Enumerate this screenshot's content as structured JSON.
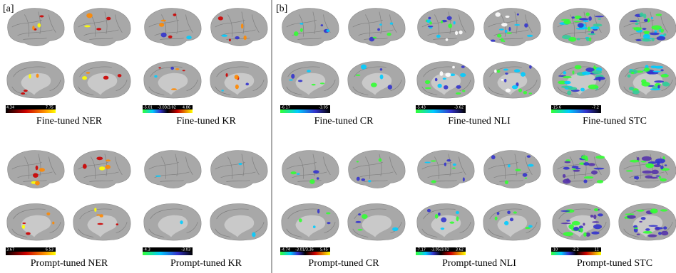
{
  "labels": {
    "a": "[a]",
    "b": "[b]"
  },
  "panels": [
    {
      "title": "Fine-tuned NER",
      "colorbar": [
        "4.34",
        "7.75"
      ]
    },
    {
      "title": "Fine-tuned KR",
      "colorbar": [
        "-5.01",
        "-3.03/3.02",
        "4.86"
      ]
    },
    {
      "title": "Prompt-tuned NER",
      "colorbar": [
        "3.67",
        "6.53"
      ]
    },
    {
      "title": "Prompt-tuned KR",
      "colorbar": [
        "-4.3",
        "-3.03"
      ]
    },
    {
      "title": "Fine-tuned CR",
      "colorbar": [
        "-6.17",
        "-3.05"
      ]
    },
    {
      "title": "Fine-tuned NLI",
      "colorbar": [
        "-5.43",
        "-3.62"
      ]
    },
    {
      "title": "Fine-tuned STC",
      "colorbar": [
        "-15.6",
        "-7.2"
      ]
    },
    {
      "title": "Prompt-tuned CR",
      "colorbar": [
        "-4.74",
        "-3.01/3.36",
        "5.45"
      ]
    },
    {
      "title": "Prompt-tuned NLI",
      "colorbar": [
        "-7.17",
        "-3.05/3.02",
        "3.62"
      ]
    },
    {
      "title": "Prompt-tuned STC",
      "colorbar": [
        "-10",
        "-2.2",
        "11"
      ]
    }
  ]
}
